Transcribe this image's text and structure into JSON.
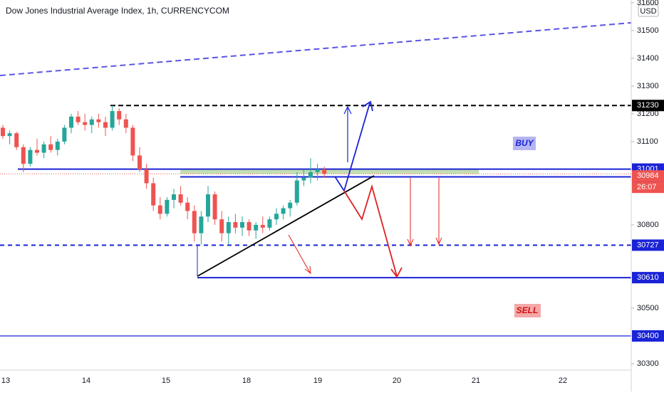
{
  "chart_data": {
    "type": "candlestick",
    "title": "Dow Jones Industrial Average Index, 1h, CURRENCYCOM",
    "currency": "USD",
    "x_labels": [
      "13",
      "14",
      "15",
      "18",
      "19",
      "20",
      "21",
      "22"
    ],
    "open": [
      31150,
      31120,
      31130,
      31080,
      31020,
      31070,
      31060,
      31090,
      31070,
      31100,
      31150,
      31190,
      31170,
      31160,
      31180,
      31170,
      31150,
      31210,
      31180,
      31150,
      31050,
      31000,
      30950,
      30870,
      30840,
      30890,
      30910,
      30880,
      30850,
      30770,
      30830,
      30910,
      30820,
      30770,
      30810,
      30790,
      30810,
      30780,
      30800,
      30790,
      30820,
      30840,
      30860,
      30880,
      30960,
      30970,
      30990,
      31000
    ],
    "high": [
      31160,
      31140,
      31135,
      31090,
      31080,
      31110,
      31100,
      31120,
      31110,
      31160,
      31200,
      31210,
      31200,
      31190,
      31200,
      31190,
      31230,
      31220,
      31200,
      31160,
      31080,
      31020,
      30970,
      30900,
      30900,
      30930,
      30940,
      30900,
      30870,
      30850,
      30940,
      30920,
      30850,
      30830,
      30840,
      30830,
      30820,
      30810,
      30830,
      30830,
      30860,
      30870,
      30890,
      30990,
      31000,
      31040,
      31020,
      31010
    ],
    "low": [
      31110,
      31090,
      31070,
      30990,
      31010,
      31050,
      31040,
      31060,
      31050,
      31090,
      31130,
      31160,
      31140,
      31130,
      31150,
      31120,
      31140,
      31160,
      31130,
      31030,
      30990,
      30930,
      30850,
      30820,
      30830,
      30860,
      30870,
      30820,
      30740,
      30730,
      30810,
      30800,
      30740,
      30730,
      30770,
      30760,
      30760,
      30750,
      30770,
      30780,
      30800,
      30820,
      30830,
      30870,
      30940,
      30950,
      30960,
      30970
    ],
    "close": [
      31120,
      31130,
      31080,
      31020,
      31070,
      31060,
      31090,
      31070,
      31100,
      31150,
      31190,
      31170,
      31160,
      31180,
      31170,
      31150,
      31210,
      31180,
      31150,
      31050,
      31000,
      30950,
      30870,
      30840,
      30890,
      30910,
      30880,
      30850,
      30770,
      30830,
      30910,
      30820,
      30770,
      30810,
      30790,
      30810,
      30780,
      30800,
      30790,
      30820,
      30840,
      30860,
      30880,
      30960,
      30970,
      30990,
      31000,
      30984
    ],
    "up_color": "#26a69a",
    "down_color": "#ef5350",
    "ylim": [
      30277,
      31610
    ],
    "yticks": [
      30300,
      30500,
      30800,
      31100,
      31200,
      31300,
      31400,
      31500,
      31600
    ],
    "levels": [
      {
        "value": 31230,
        "color": "#000000",
        "dash": true
      },
      {
        "value": 31001,
        "color": "#1a23d6",
        "dash": false
      },
      {
        "value": 30973,
        "color": "#1a23d6",
        "dash": false
      },
      {
        "value": 30727,
        "color": "#1a23d6",
        "dash": true
      },
      {
        "value": 30610,
        "color": "#1a23d6",
        "dash": false
      },
      {
        "value": 30400,
        "color": "#1a23d6",
        "dash": false
      }
    ],
    "last_price": 30984,
    "countdown": "26:07",
    "trend_top": [
      31338,
      31528
    ],
    "trend_support": [
      30615,
      30977
    ],
    "buy_label": "BUY",
    "sell_label": "SELL"
  }
}
